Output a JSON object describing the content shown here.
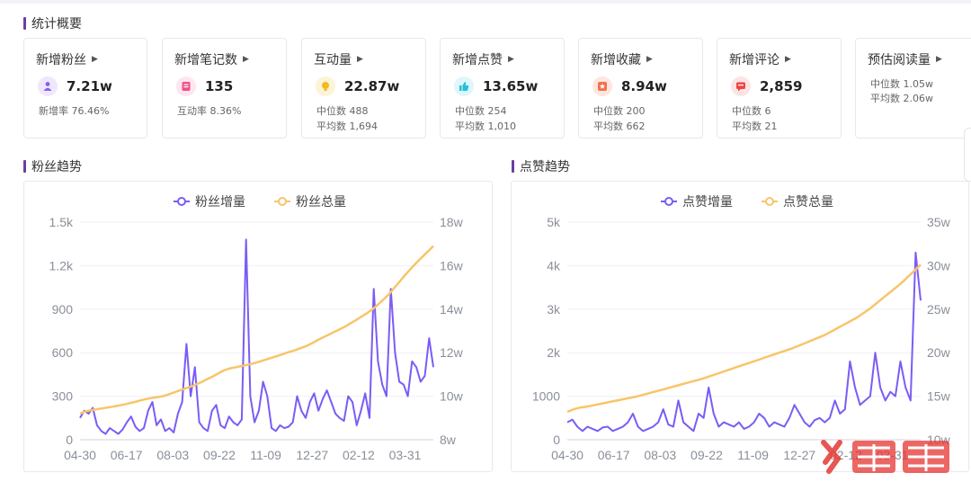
{
  "overview": {
    "title": "统计概要",
    "cards": [
      {
        "title": "新增粉丝",
        "value": "7.21w",
        "lines": [
          "新增率 76.46%"
        ],
        "icon": "fans-icon",
        "color": "#8b5cf6",
        "bg": "#efe8fd"
      },
      {
        "title": "新增笔记数",
        "value": "135",
        "lines": [
          "互动率 8.36%"
        ],
        "icon": "note-icon",
        "color": "#f0508a",
        "bg": "#fde6ee"
      },
      {
        "title": "互动量",
        "value": "22.87w",
        "lines": [
          "中位数 488",
          "平均数 1,694"
        ],
        "icon": "interaction-icon",
        "color": "#f5b81f",
        "bg": "#fdf3d8"
      },
      {
        "title": "新增点赞",
        "value": "13.65w",
        "lines": [
          "中位数 254",
          "平均数 1,010"
        ],
        "icon": "thumbs-up-icon",
        "color": "#22c0d8",
        "bg": "#dff6fa"
      },
      {
        "title": "新增收藏",
        "value": "8.94w",
        "lines": [
          "中位数 200",
          "平均数 662"
        ],
        "icon": "star-icon",
        "color": "#f27048",
        "bg": "#fde6df"
      },
      {
        "title": "新增评论",
        "value": "2,859",
        "lines": [
          "中位数 6",
          "平均数 21"
        ],
        "icon": "comment-icon",
        "color": "#ef4444",
        "bg": "#fde4e4"
      },
      {
        "title": "预估阅读量",
        "value": "",
        "lines": [
          "中位数 1.05w",
          "平均数 2.06w"
        ],
        "icon": "",
        "color": "",
        "bg": ""
      }
    ]
  },
  "fans_section": {
    "title": "粉丝趋势"
  },
  "likes_section": {
    "title": "点赞趋势"
  },
  "chart_data": [
    {
      "type": "line",
      "legend_position": "top-center",
      "x_tick_labels": [
        "04-30",
        "06-17",
        "08-03",
        "09-22",
        "11-09",
        "12-27",
        "02-12",
        "03-31"
      ],
      "y_left_ticks": [
        "0",
        "300",
        "600",
        "900",
        "1.2k",
        "1.5k"
      ],
      "y_left_range": [
        0,
        1500
      ],
      "y_right_ticks": [
        "8w",
        "10w",
        "12w",
        "14w",
        "16w",
        "18w"
      ],
      "y_right_range": [
        80000,
        180000
      ],
      "series": [
        {
          "name": "粉丝增量",
          "axis": "left",
          "color": "#7b5cf5",
          "values": [
            150,
            200,
            180,
            220,
            100,
            60,
            40,
            80,
            60,
            40,
            70,
            120,
            160,
            90,
            60,
            80,
            200,
            260,
            100,
            140,
            60,
            80,
            50,
            180,
            260,
            660,
            300,
            500,
            120,
            80,
            60,
            200,
            240,
            100,
            80,
            160,
            120,
            100,
            140,
            1380,
            300,
            120,
            200,
            400,
            300,
            80,
            60,
            100,
            80,
            90,
            120,
            300,
            200,
            150,
            260,
            320,
            200,
            280,
            340,
            260,
            180,
            150,
            130,
            300,
            260,
            100,
            200,
            320,
            150,
            1040,
            540,
            380,
            300,
            1040,
            600,
            400,
            380,
            300,
            540,
            500,
            400,
            440,
            700,
            500
          ]
        },
        {
          "name": "粉丝总量",
          "axis": "right",
          "color": "#f7c56a",
          "values": [
            92000,
            93000,
            93600,
            94000,
            94400,
            94800,
            95200,
            95700,
            96200,
            96800,
            97400,
            98100,
            98700,
            99200,
            99600,
            100000,
            100800,
            101700,
            102600,
            103500,
            104400,
            105400,
            106500,
            107800,
            109000,
            110400,
            111800,
            112700,
            113200,
            113700,
            114200,
            114800,
            115500,
            116300,
            117100,
            117900,
            118700,
            119600,
            120400,
            121200,
            122100,
            123100,
            124300,
            125700,
            127000,
            128200,
            129500,
            130700,
            132000,
            133500,
            135000,
            136600,
            138200,
            140000,
            142200,
            144500,
            147000,
            150000,
            153000,
            156000,
            158800,
            161500,
            164000,
            166500,
            169000
          ]
        }
      ]
    },
    {
      "type": "line",
      "legend_position": "top-center",
      "x_tick_labels": [
        "04-30",
        "06-17",
        "08-03",
        "09-22",
        "11-09",
        "12-27",
        "02-12",
        "03-31"
      ],
      "y_left_ticks": [
        "0",
        "1000",
        "2k",
        "3k",
        "4k",
        "5k"
      ],
      "y_left_range": [
        0,
        5000
      ],
      "y_right_ticks": [
        "10w",
        "15w",
        "20w",
        "25w",
        "30w",
        "35w"
      ],
      "y_right_range": [
        100000,
        350000
      ],
      "series": [
        {
          "name": "点赞增量",
          "axis": "left",
          "color": "#7b5cf5",
          "values": [
            400,
            460,
            300,
            200,
            300,
            250,
            200,
            280,
            300,
            200,
            250,
            300,
            400,
            600,
            300,
            200,
            250,
            300,
            400,
            700,
            350,
            300,
            900,
            400,
            300,
            200,
            600,
            500,
            1200,
            600,
            300,
            400,
            350,
            300,
            400,
            250,
            300,
            400,
            600,
            500,
            300,
            400,
            350,
            300,
            500,
            800,
            600,
            400,
            300,
            450,
            500,
            400,
            500,
            900,
            600,
            700,
            1800,
            1200,
            800,
            900,
            1000,
            2000,
            1200,
            900,
            1100,
            1000,
            1800,
            1200,
            900,
            4300,
            3200
          ]
        },
        {
          "name": "点赞总量",
          "axis": "right",
          "color": "#f7c56a",
          "values": [
            132000,
            135000,
            137000,
            138000,
            139500,
            141000,
            142500,
            144000,
            145500,
            147000,
            148500,
            150000,
            152000,
            154000,
            156000,
            158000,
            160000,
            162000,
            164000,
            166000,
            168000,
            170000,
            172500,
            175000,
            177500,
            180000,
            182500,
            185000,
            187500,
            190000,
            192500,
            195000,
            197500,
            200000,
            202500,
            205000,
            208000,
            211000,
            214000,
            217000,
            220000,
            224000,
            228000,
            232000,
            236000,
            240000,
            245000,
            250000,
            256000,
            262000,
            268000,
            274000,
            280000,
            287000,
            294000,
            301000
          ]
        }
      ]
    }
  ]
}
